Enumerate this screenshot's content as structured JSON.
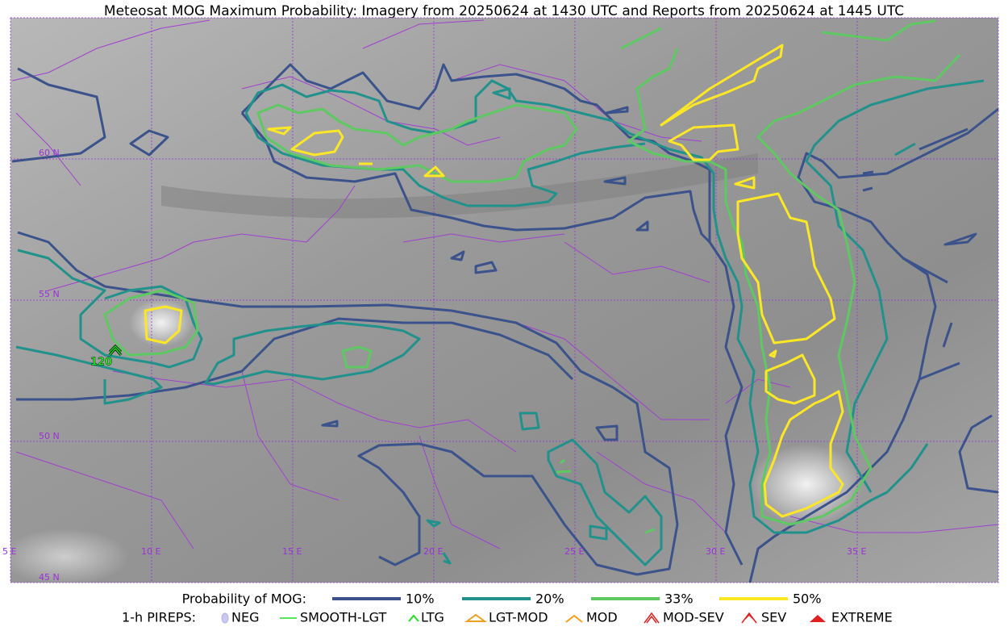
{
  "title": "Meteosat MOG Maximum Probability: Imagery from 20250624 at 1430 UTC and Reports from 20250624 at 1445 UTC",
  "map": {
    "lat_labels": [
      "60 N",
      "55 N",
      "50 N",
      "45 N"
    ],
    "lon_labels": [
      "5 E",
      "10 E",
      "15 E",
      "20 E",
      "25 E",
      "30 E",
      "35 E"
    ],
    "reports": [
      {
        "label": "120"
      }
    ]
  },
  "legend": {
    "mog_title": "Probability of MOG:",
    "mog_items": [
      {
        "label": "10%",
        "color": "#3b528b"
      },
      {
        "label": "20%",
        "color": "#21918c"
      },
      {
        "label": "33%",
        "color": "#5ec962"
      },
      {
        "label": "50%",
        "color": "#fde725"
      }
    ],
    "pirep_title": "1-h PIREPS:",
    "pirep_items": [
      "NEG",
      "SMOOTH-LGT",
      "LTG",
      "LGT-MOD",
      "MOD",
      "MOD-SEV",
      "SEV",
      "EXTREME"
    ]
  }
}
